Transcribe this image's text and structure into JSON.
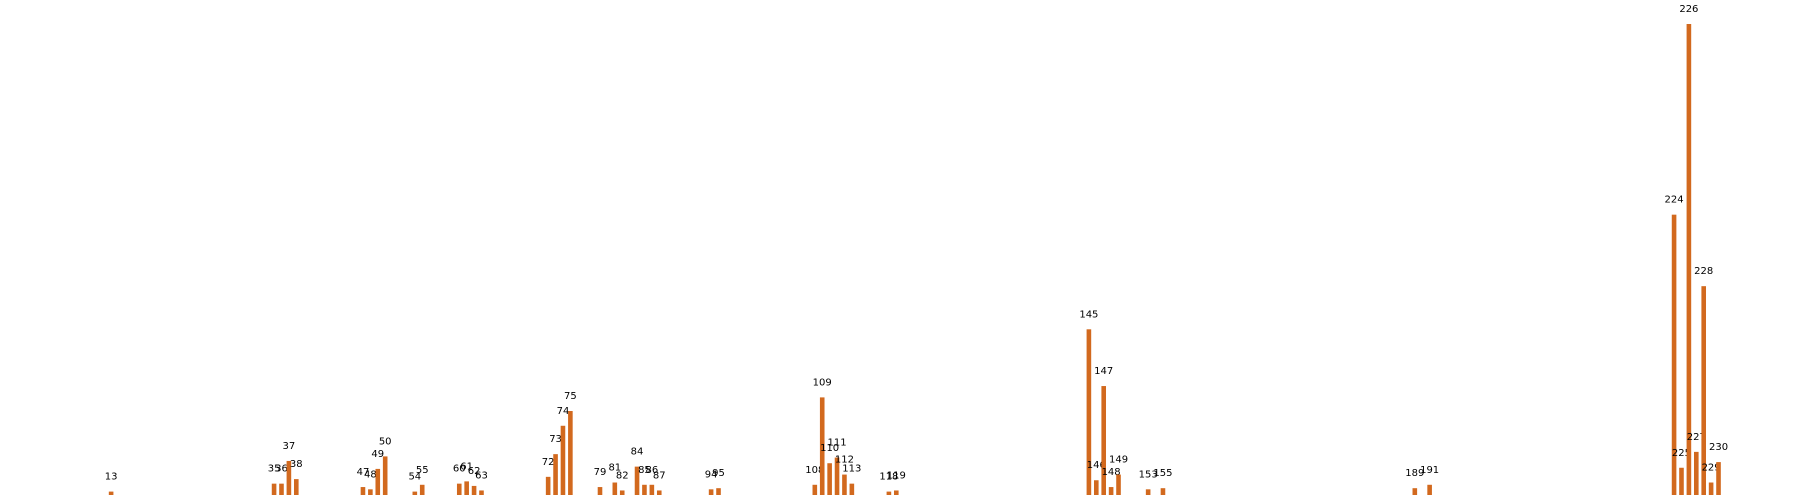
{
  "chart_data": {
    "type": "bar",
    "color": "#d2691e",
    "x": [
      13,
      35,
      36,
      37,
      38,
      47,
      48,
      49,
      50,
      54,
      55,
      60,
      61,
      62,
      63,
      72,
      73,
      74,
      75,
      79,
      81,
      82,
      84,
      85,
      86,
      87,
      94,
      95,
      108,
      109,
      110,
      111,
      112,
      113,
      118,
      119,
      145,
      146,
      147,
      148,
      149,
      153,
      155,
      189,
      191,
      224,
      225,
      226,
      227,
      228,
      229,
      230
    ],
    "values": [
      3,
      10,
      10,
      30,
      14,
      7,
      5,
      23,
      34,
      3,
      9,
      10,
      12,
      8,
      4,
      16,
      36,
      61,
      74,
      7,
      11,
      4,
      25,
      9,
      9,
      4,
      5,
      6,
      9,
      86,
      28,
      33,
      18,
      10,
      3,
      4,
      146,
      13,
      96,
      7,
      18,
      5,
      6,
      6,
      9,
      247,
      24,
      415,
      38,
      184,
      11,
      29
    ],
    "xlim": [
      -2,
      241
    ],
    "ylim": [
      0,
      415
    ]
  }
}
